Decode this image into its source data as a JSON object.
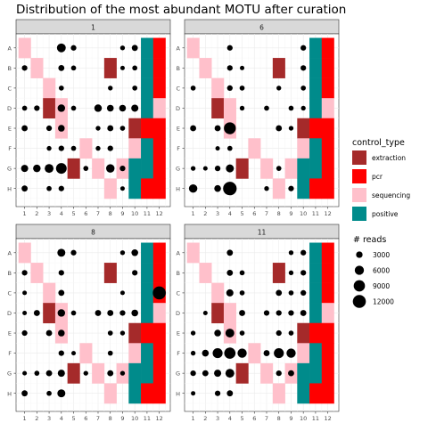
{
  "chart_data": {
    "type": "scatter",
    "title": "Distribution of the most abundant MOTU after curation",
    "xlabel": "",
    "ylabel": "",
    "x_ticks": [
      "1",
      "2",
      "3",
      "4",
      "5",
      "6",
      "7",
      "8",
      "9",
      "10",
      "11",
      "12"
    ],
    "y_ticks": [
      "A",
      "B",
      "C",
      "D",
      "E",
      "F",
      "G",
      "H"
    ],
    "grid": true,
    "control_legend": {
      "title": "control_type",
      "position": "right",
      "items": [
        {
          "name": "extraction",
          "color": "#A52A2A"
        },
        {
          "name": "pcr",
          "color": "#FF0000"
        },
        {
          "name": "sequencing",
          "color": "#FFC0CB"
        },
        {
          "name": "positive",
          "color": "#008B8B"
        }
      ]
    },
    "size_legend": {
      "title": "# reads",
      "position": "right",
      "values": [
        3000,
        6000,
        9000,
        12000
      ],
      "labels": [
        "3000",
        "6000",
        "9000",
        "12000"
      ],
      "max_reads": 13000
    },
    "controls": [
      {
        "col": 1,
        "row": "A",
        "type": "sequencing"
      },
      {
        "col": 2,
        "row": "B",
        "type": "sequencing"
      },
      {
        "col": 3,
        "row": "C",
        "type": "sequencing"
      },
      {
        "col": 3,
        "row": "D",
        "type": "extraction"
      },
      {
        "col": 4,
        "row": "D",
        "type": "sequencing"
      },
      {
        "col": 4,
        "row": "E",
        "type": "sequencing"
      },
      {
        "col": 5,
        "row": "G",
        "type": "extraction"
      },
      {
        "col": 6,
        "row": "F",
        "type": "sequencing"
      },
      {
        "col": 7,
        "row": "G",
        "type": "sequencing"
      },
      {
        "col": 8,
        "row": "B",
        "type": "extraction"
      },
      {
        "col": 8,
        "row": "H",
        "type": "sequencing"
      },
      {
        "col": 9,
        "row": "G",
        "type": "sequencing"
      },
      {
        "col": 10,
        "row": "E",
        "type": "extraction"
      },
      {
        "col": 10,
        "row": "F",
        "type": "sequencing"
      },
      {
        "col": 10,
        "row": "G",
        "type": "positive"
      },
      {
        "col": 10,
        "row": "H",
        "type": "positive"
      },
      {
        "col": 11,
        "row": "A",
        "type": "positive"
      },
      {
        "col": 11,
        "row": "B",
        "type": "positive"
      },
      {
        "col": 11,
        "row": "C",
        "type": "positive"
      },
      {
        "col": 11,
        "row": "D",
        "type": "positive"
      },
      {
        "col": 11,
        "row": "E",
        "type": "pcr"
      },
      {
        "col": 11,
        "row": "F",
        "type": "positive"
      },
      {
        "col": 11,
        "row": "G",
        "type": "positive"
      },
      {
        "col": 11,
        "row": "H",
        "type": "pcr"
      },
      {
        "col": 12,
        "row": "A",
        "type": "pcr"
      },
      {
        "col": 12,
        "row": "B",
        "type": "pcr"
      },
      {
        "col": 12,
        "row": "C",
        "type": "pcr"
      },
      {
        "col": 12,
        "row": "D",
        "type": "sequencing"
      },
      {
        "col": 12,
        "row": "E",
        "type": "pcr"
      },
      {
        "col": 12,
        "row": "F",
        "type": "pcr"
      },
      {
        "col": 12,
        "row": "G",
        "type": "pcr"
      },
      {
        "col": 12,
        "row": "H",
        "type": "pcr"
      }
    ],
    "panels": [
      {
        "label": "1",
        "points": [
          {
            "x": 4,
            "y": "A",
            "reads": 5500
          },
          {
            "x": 5,
            "y": "A",
            "reads": 2200
          },
          {
            "x": 9,
            "y": "A",
            "reads": 1600
          },
          {
            "x": 10,
            "y": "A",
            "reads": 2600
          },
          {
            "x": 1,
            "y": "B",
            "reads": 2200
          },
          {
            "x": 4,
            "y": "B",
            "reads": 2600
          },
          {
            "x": 5,
            "y": "B",
            "reads": 1800
          },
          {
            "x": 9,
            "y": "B",
            "reads": 1400
          },
          {
            "x": 10,
            "y": "B",
            "reads": 1800
          },
          {
            "x": 4,
            "y": "C",
            "reads": 1800
          },
          {
            "x": 8,
            "y": "C",
            "reads": 1600
          },
          {
            "x": 10,
            "y": "C",
            "reads": 1800
          },
          {
            "x": 1,
            "y": "D",
            "reads": 1800
          },
          {
            "x": 2,
            "y": "D",
            "reads": 2200
          },
          {
            "x": 4,
            "y": "D",
            "reads": 4000
          },
          {
            "x": 5,
            "y": "D",
            "reads": 1800
          },
          {
            "x": 7,
            "y": "D",
            "reads": 4000
          },
          {
            "x": 8,
            "y": "D",
            "reads": 3200
          },
          {
            "x": 9,
            "y": "D",
            "reads": 3200
          },
          {
            "x": 10,
            "y": "D",
            "reads": 3600
          },
          {
            "x": 1,
            "y": "E",
            "reads": 2600
          },
          {
            "x": 3,
            "y": "E",
            "reads": 2200
          },
          {
            "x": 4,
            "y": "E",
            "reads": 3200
          },
          {
            "x": 7,
            "y": "E",
            "reads": 1600
          },
          {
            "x": 8,
            "y": "E",
            "reads": 2600
          },
          {
            "x": 9,
            "y": "E",
            "reads": 1800
          },
          {
            "x": 3,
            "y": "F",
            "reads": 1600
          },
          {
            "x": 4,
            "y": "F",
            "reads": 2200
          },
          {
            "x": 5,
            "y": "F",
            "reads": 1800
          },
          {
            "x": 7,
            "y": "F",
            "reads": 1600
          },
          {
            "x": 8,
            "y": "F",
            "reads": 2200
          },
          {
            "x": 1,
            "y": "G",
            "reads": 3600
          },
          {
            "x": 2,
            "y": "G",
            "reads": 4000
          },
          {
            "x": 3,
            "y": "G",
            "reads": 5500
          },
          {
            "x": 4,
            "y": "G",
            "reads": 8000
          },
          {
            "x": 6,
            "y": "G",
            "reads": 1800
          },
          {
            "x": 8,
            "y": "G",
            "reads": 5000
          },
          {
            "x": 9,
            "y": "G",
            "reads": 2200
          },
          {
            "x": 1,
            "y": "H",
            "reads": 2600
          },
          {
            "x": 3,
            "y": "H",
            "reads": 1800
          },
          {
            "x": 4,
            "y": "H",
            "reads": 2200
          },
          {
            "x": 9,
            "y": "H",
            "reads": 1400
          }
        ]
      },
      {
        "label": "6",
        "points": [
          {
            "x": 4,
            "y": "A",
            "reads": 2200
          },
          {
            "x": 10,
            "y": "A",
            "reads": 2200
          },
          {
            "x": 4,
            "y": "B",
            "reads": 2200
          },
          {
            "x": 5,
            "y": "B",
            "reads": 1400
          },
          {
            "x": 10,
            "y": "B",
            "reads": 2200
          },
          {
            "x": 1,
            "y": "C",
            "reads": 1800
          },
          {
            "x": 4,
            "y": "C",
            "reads": 2200
          },
          {
            "x": 5,
            "y": "C",
            "reads": 1800
          },
          {
            "x": 8,
            "y": "C",
            "reads": 1600
          },
          {
            "x": 10,
            "y": "C",
            "reads": 1800
          },
          {
            "x": 5,
            "y": "D",
            "reads": 1600
          },
          {
            "x": 7,
            "y": "D",
            "reads": 1800
          },
          {
            "x": 9,
            "y": "D",
            "reads": 1800
          },
          {
            "x": 10,
            "y": "D",
            "reads": 1600
          },
          {
            "x": 1,
            "y": "E",
            "reads": 2600
          },
          {
            "x": 3,
            "y": "E",
            "reads": 2600
          },
          {
            "x": 4,
            "y": "E",
            "reads": 10000
          },
          {
            "x": 8,
            "y": "E",
            "reads": 2600
          },
          {
            "x": 9,
            "y": "E",
            "reads": 1600
          },
          {
            "x": 3,
            "y": "F",
            "reads": 1400
          },
          {
            "x": 4,
            "y": "F",
            "reads": 1800
          },
          {
            "x": 1,
            "y": "G",
            "reads": 1600
          },
          {
            "x": 2,
            "y": "G",
            "reads": 1400
          },
          {
            "x": 3,
            "y": "G",
            "reads": 2200
          },
          {
            "x": 4,
            "y": "G",
            "reads": 4500
          },
          {
            "x": 8,
            "y": "G",
            "reads": 1800
          },
          {
            "x": 1,
            "y": "H",
            "reads": 5000
          },
          {
            "x": 3,
            "y": "H",
            "reads": 3200
          },
          {
            "x": 4,
            "y": "H",
            "reads": 13000
          },
          {
            "x": 7,
            "y": "H",
            "reads": 1600
          },
          {
            "x": 9,
            "y": "H",
            "reads": 2200
          }
        ]
      },
      {
        "label": "8",
        "points": [
          {
            "x": 4,
            "y": "A",
            "reads": 4500
          },
          {
            "x": 5,
            "y": "A",
            "reads": 2200
          },
          {
            "x": 9,
            "y": "A",
            "reads": 1600
          },
          {
            "x": 10,
            "y": "A",
            "reads": 3200
          },
          {
            "x": 1,
            "y": "B",
            "reads": 2200
          },
          {
            "x": 4,
            "y": "B",
            "reads": 2200
          },
          {
            "x": 10,
            "y": "B",
            "reads": 2200
          },
          {
            "x": 1,
            "y": "C",
            "reads": 1400
          },
          {
            "x": 4,
            "y": "C",
            "reads": 2600
          },
          {
            "x": 9,
            "y": "C",
            "reads": 1400
          },
          {
            "x": 12,
            "y": "C",
            "reads": 12000
          },
          {
            "x": 1,
            "y": "D",
            "reads": 1400
          },
          {
            "x": 2,
            "y": "D",
            "reads": 2600
          },
          {
            "x": 4,
            "y": "D",
            "reads": 4000
          },
          {
            "x": 5,
            "y": "D",
            "reads": 1800
          },
          {
            "x": 7,
            "y": "D",
            "reads": 2600
          },
          {
            "x": 8,
            "y": "D",
            "reads": 2600
          },
          {
            "x": 9,
            "y": "D",
            "reads": 2200
          },
          {
            "x": 10,
            "y": "D",
            "reads": 3200
          },
          {
            "x": 1,
            "y": "E",
            "reads": 2200
          },
          {
            "x": 3,
            "y": "E",
            "reads": 2600
          },
          {
            "x": 4,
            "y": "E",
            "reads": 3200
          },
          {
            "x": 8,
            "y": "E",
            "reads": 1800
          },
          {
            "x": 9,
            "y": "E",
            "reads": 1600
          },
          {
            "x": 4,
            "y": "F",
            "reads": 2200
          },
          {
            "x": 5,
            "y": "F",
            "reads": 1400
          },
          {
            "x": 8,
            "y": "F",
            "reads": 1800
          },
          {
            "x": 1,
            "y": "G",
            "reads": 1400
          },
          {
            "x": 2,
            "y": "G",
            "reads": 1800
          },
          {
            "x": 3,
            "y": "G",
            "reads": 2600
          },
          {
            "x": 4,
            "y": "G",
            "reads": 3600
          },
          {
            "x": 6,
            "y": "G",
            "reads": 1600
          },
          {
            "x": 8,
            "y": "G",
            "reads": 2600
          },
          {
            "x": 9,
            "y": "G",
            "reads": 1600
          },
          {
            "x": 1,
            "y": "H",
            "reads": 2600
          },
          {
            "x": 3,
            "y": "H",
            "reads": 1800
          },
          {
            "x": 4,
            "y": "H",
            "reads": 4500
          }
        ]
      },
      {
        "label": "11",
        "points": [
          {
            "x": 4,
            "y": "A",
            "reads": 2600
          },
          {
            "x": 9,
            "y": "A",
            "reads": 1600
          },
          {
            "x": 10,
            "y": "A",
            "reads": 2200
          },
          {
            "x": 4,
            "y": "B",
            "reads": 2600
          },
          {
            "x": 5,
            "y": "B",
            "reads": 1800
          },
          {
            "x": 9,
            "y": "B",
            "reads": 1600
          },
          {
            "x": 10,
            "y": "B",
            "reads": 2200
          },
          {
            "x": 4,
            "y": "C",
            "reads": 3600
          },
          {
            "x": 5,
            "y": "C",
            "reads": 1800
          },
          {
            "x": 8,
            "y": "C",
            "reads": 2600
          },
          {
            "x": 9,
            "y": "C",
            "reads": 1800
          },
          {
            "x": 10,
            "y": "C",
            "reads": 2200
          },
          {
            "x": 2,
            "y": "D",
            "reads": 1400
          },
          {
            "x": 5,
            "y": "D",
            "reads": 2600
          },
          {
            "x": 7,
            "y": "D",
            "reads": 2200
          },
          {
            "x": 8,
            "y": "D",
            "reads": 2200
          },
          {
            "x": 9,
            "y": "D",
            "reads": 2200
          },
          {
            "x": 10,
            "y": "D",
            "reads": 2600
          },
          {
            "x": 1,
            "y": "E",
            "reads": 1600
          },
          {
            "x": 3,
            "y": "E",
            "reads": 3200
          },
          {
            "x": 4,
            "y": "E",
            "reads": 5500
          },
          {
            "x": 5,
            "y": "E",
            "reads": 1800
          },
          {
            "x": 8,
            "y": "E",
            "reads": 2200
          },
          {
            "x": 9,
            "y": "E",
            "reads": 1800
          },
          {
            "x": 1,
            "y": "F",
            "reads": 1600
          },
          {
            "x": 2,
            "y": "F",
            "reads": 3200
          },
          {
            "x": 3,
            "y": "F",
            "reads": 7000
          },
          {
            "x": 4,
            "y": "F",
            "reads": 9000
          },
          {
            "x": 5,
            "y": "F",
            "reads": 6000
          },
          {
            "x": 7,
            "y": "F",
            "reads": 2600
          },
          {
            "x": 8,
            "y": "F",
            "reads": 7000
          },
          {
            "x": 9,
            "y": "F",
            "reads": 6000
          },
          {
            "x": 1,
            "y": "G",
            "reads": 2200
          },
          {
            "x": 2,
            "y": "G",
            "reads": 2600
          },
          {
            "x": 3,
            "y": "G",
            "reads": 3600
          },
          {
            "x": 4,
            "y": "G",
            "reads": 5500
          },
          {
            "x": 8,
            "y": "G",
            "reads": 2200
          },
          {
            "x": 9,
            "y": "G",
            "reads": 2600
          },
          {
            "x": 1,
            "y": "H",
            "reads": 1400
          },
          {
            "x": 3,
            "y": "H",
            "reads": 2200
          },
          {
            "x": 4,
            "y": "H",
            "reads": 2600
          }
        ]
      }
    ]
  }
}
